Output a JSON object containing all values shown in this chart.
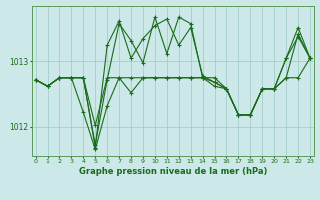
{
  "bg_color": "#cce8e8",
  "line_color": "#1a6b1a",
  "grid_color": "#9dc8c8",
  "title": "Graphe pression niveau de la mer (hPa)",
  "yticks": [
    1012,
    1013
  ],
  "x_ticks": [
    0,
    1,
    2,
    3,
    4,
    5,
    6,
    7,
    8,
    9,
    10,
    11,
    12,
    13,
    14,
    15,
    16,
    17,
    18,
    19,
    20,
    21,
    22,
    23
  ],
  "ylim": [
    1011.55,
    1013.85
  ],
  "xlim": [
    -0.3,
    23.3
  ],
  "series": [
    [
      1012.72,
      1012.62,
      1012.75,
      1012.75,
      1012.75,
      1011.68,
      1013.25,
      1013.62,
      1013.05,
      1013.35,
      1013.55,
      1013.65,
      1013.25,
      1013.52,
      1012.78,
      1012.68,
      1012.58,
      1012.18,
      1012.18,
      1012.58,
      1012.58,
      1013.05,
      1013.38,
      1013.05
    ],
    [
      1012.72,
      1012.62,
      1012.75,
      1012.75,
      1012.75,
      1011.72,
      1012.72,
      1013.58,
      1013.32,
      1012.98,
      1013.68,
      1013.12,
      1013.68,
      1013.58,
      1012.75,
      1012.68,
      1012.58,
      1012.18,
      1012.18,
      1012.58,
      1012.58,
      1013.05,
      1013.52,
      1013.05
    ],
    [
      1012.72,
      1012.62,
      1012.75,
      1012.75,
      1012.22,
      1011.65,
      1012.32,
      1012.75,
      1012.52,
      1012.75,
      1012.75,
      1012.75,
      1012.75,
      1012.75,
      1012.75,
      1012.62,
      1012.58,
      1012.18,
      1012.18,
      1012.58,
      1012.58,
      1012.75,
      1013.42,
      1013.05
    ],
    [
      1012.72,
      1012.62,
      1012.75,
      1012.75,
      1012.75,
      1012.02,
      1012.75,
      1012.75,
      1012.75,
      1012.75,
      1012.75,
      1012.75,
      1012.75,
      1012.75,
      1012.75,
      1012.75,
      1012.58,
      1012.18,
      1012.18,
      1012.58,
      1012.58,
      1012.75,
      1012.75,
      1013.05
    ]
  ]
}
